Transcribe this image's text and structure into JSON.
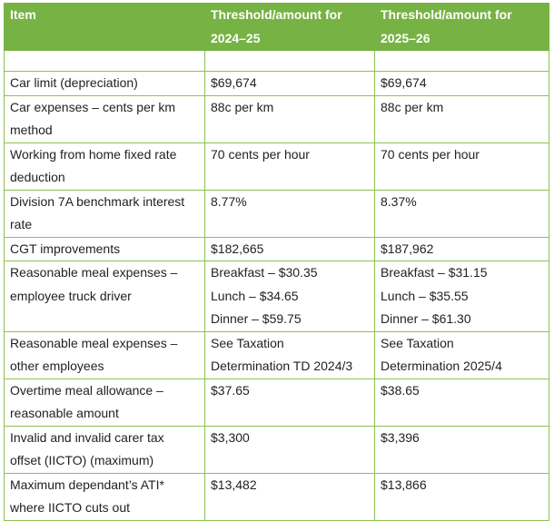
{
  "table": {
    "header": [
      [
        "Item"
      ],
      [
        "Threshold/amount for",
        "2024–25"
      ],
      [
        "Threshold/amount for",
        "2025–26"
      ]
    ],
    "rows": [
      [
        [
          "Car limit (depreciation)"
        ],
        [
          "$69,674"
        ],
        [
          "$69,674"
        ]
      ],
      [
        [
          "Car expenses – cents per km",
          "method"
        ],
        [
          "88c per km"
        ],
        [
          "88c per km"
        ]
      ],
      [
        [
          "Working from home fixed rate",
          "deduction"
        ],
        [
          "70 cents per hour"
        ],
        [
          "70 cents per hour"
        ]
      ],
      [
        [
          "Division 7A benchmark interest",
          "rate"
        ],
        [
          "8.77%"
        ],
        [
          "8.37%"
        ]
      ],
      [
        [
          "CGT improvements"
        ],
        [
          "$182,665"
        ],
        [
          "$187,962"
        ]
      ],
      [
        [
          "Reasonable meal expenses –",
          "employee truck driver"
        ],
        [
          "Breakfast – $30.35",
          "Lunch – $34.65",
          "Dinner – $59.75"
        ],
        [
          "Breakfast – $31.15",
          "Lunch – $35.55",
          "Dinner – $61.30"
        ]
      ],
      [
        [
          "Reasonable meal expenses –",
          "other employees"
        ],
        [
          "See Taxation",
          "Determination TD 2024/3"
        ],
        [
          "See Taxation",
          "Determination 2025/4"
        ]
      ],
      [
        [
          "Overtime meal allowance –",
          "reasonable amount"
        ],
        [
          "$37.65"
        ],
        [
          "$38.65"
        ]
      ],
      [
        [
          "Invalid and invalid carer tax",
          "offset (IICTO) (maximum)"
        ],
        [
          "$3,300"
        ],
        [
          "$3,396"
        ]
      ],
      [
        [
          "Maximum dependant’s ATI*",
          "where IICTO cuts out"
        ],
        [
          "$13,482"
        ],
        [
          "$13,866"
        ]
      ]
    ]
  }
}
